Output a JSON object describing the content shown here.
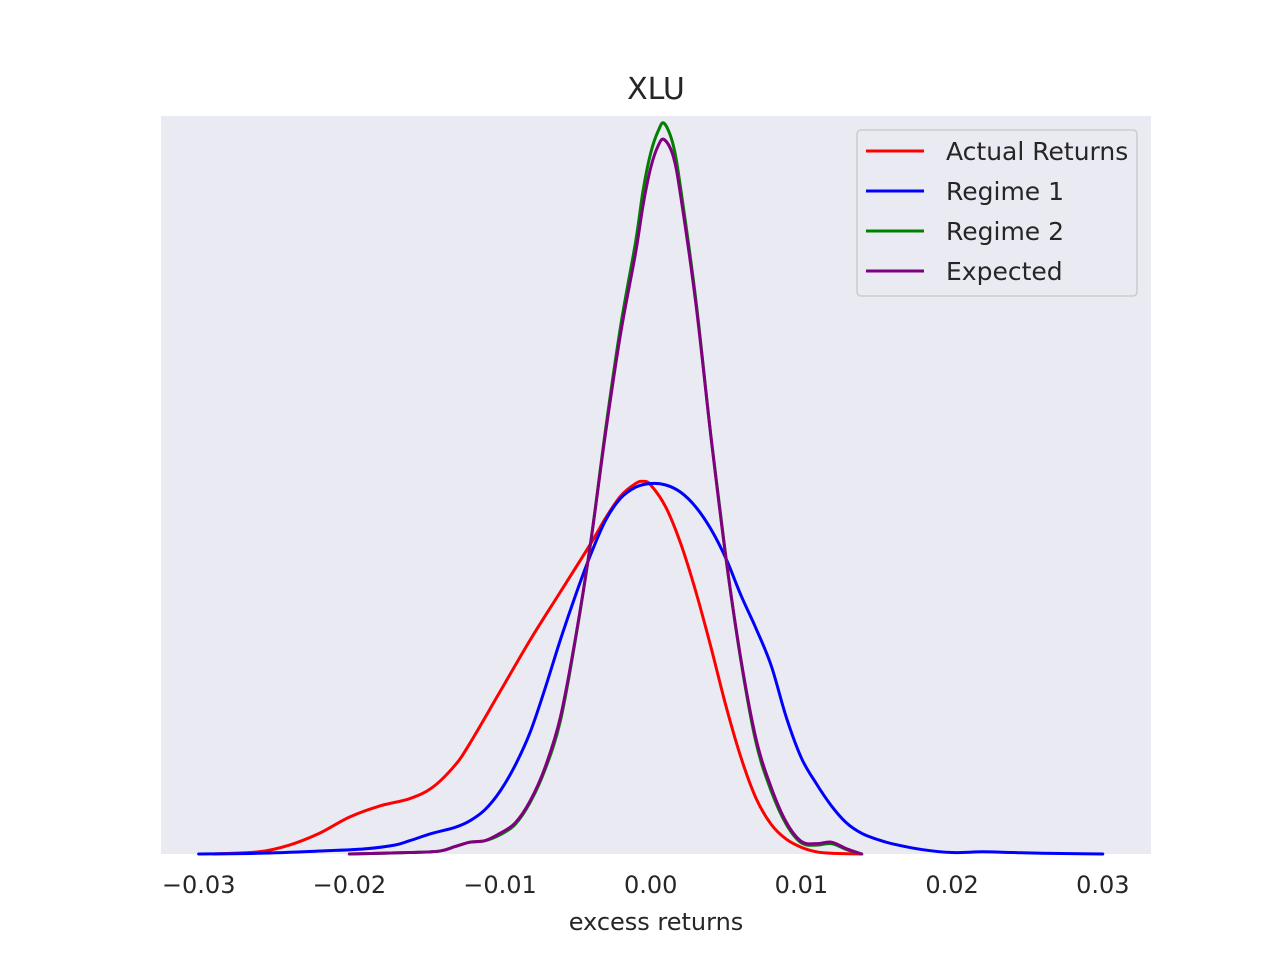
{
  "chart_data": {
    "type": "line",
    "title": "XLU",
    "xlabel": "excess returns",
    "ylabel": "",
    "xlim": [
      -0.0325,
      0.0332
    ],
    "ylim": [
      0,
      1.0
    ],
    "x_ticks": [
      -0.03,
      -0.02,
      -0.01,
      0.0,
      0.01,
      0.02,
      0.03
    ],
    "x_tick_labels": [
      "−0.03",
      "−0.02",
      "−0.01",
      "0.00",
      "0.01",
      "0.02",
      "0.03"
    ],
    "y_ticks_shown": false,
    "grid": false,
    "legend_position": "top-right",
    "series": [
      {
        "name": "Actual Returns",
        "color": "#ff0000",
        "points": [
          [
            -0.029,
            0.0
          ],
          [
            -0.026,
            0.003
          ],
          [
            -0.024,
            0.012
          ],
          [
            -0.022,
            0.028
          ],
          [
            -0.02,
            0.05
          ],
          [
            -0.018,
            0.065
          ],
          [
            -0.016,
            0.075
          ],
          [
            -0.0145,
            0.09
          ],
          [
            -0.013,
            0.12
          ],
          [
            -0.012,
            0.15
          ],
          [
            -0.01,
            0.22
          ],
          [
            -0.008,
            0.29
          ],
          [
            -0.006,
            0.355
          ],
          [
            -0.004,
            0.42
          ],
          [
            -0.003,
            0.455
          ],
          [
            -0.002,
            0.485
          ],
          [
            -0.001,
            0.502
          ],
          [
            -0.0005,
            0.505
          ],
          [
            0.0,
            0.5
          ],
          [
            0.001,
            0.47
          ],
          [
            0.002,
            0.42
          ],
          [
            0.003,
            0.355
          ],
          [
            0.004,
            0.28
          ],
          [
            0.005,
            0.2
          ],
          [
            0.006,
            0.13
          ],
          [
            0.007,
            0.075
          ],
          [
            0.008,
            0.04
          ],
          [
            0.009,
            0.02
          ],
          [
            0.01,
            0.009
          ],
          [
            0.011,
            0.003
          ],
          [
            0.012,
            0.001
          ],
          [
            0.014,
            0.0
          ]
        ]
      },
      {
        "name": "Regime 1",
        "color": "#0000ff",
        "points": [
          [
            -0.03,
            0.0
          ],
          [
            -0.026,
            0.001
          ],
          [
            -0.022,
            0.004
          ],
          [
            -0.019,
            0.007
          ],
          [
            -0.017,
            0.012
          ],
          [
            -0.016,
            0.018
          ],
          [
            -0.0145,
            0.028
          ],
          [
            -0.013,
            0.036
          ],
          [
            -0.012,
            0.045
          ],
          [
            -0.011,
            0.06
          ],
          [
            -0.01,
            0.085
          ],
          [
            -0.009,
            0.12
          ],
          [
            -0.008,
            0.165
          ],
          [
            -0.007,
            0.225
          ],
          [
            -0.006,
            0.29
          ],
          [
            -0.005,
            0.35
          ],
          [
            -0.004,
            0.405
          ],
          [
            -0.003,
            0.452
          ],
          [
            -0.002,
            0.482
          ],
          [
            -0.001,
            0.497
          ],
          [
            0.0,
            0.502
          ],
          [
            0.001,
            0.5
          ],
          [
            0.002,
            0.49
          ],
          [
            0.003,
            0.47
          ],
          [
            0.004,
            0.44
          ],
          [
            0.005,
            0.4
          ],
          [
            0.006,
            0.35
          ],
          [
            0.007,
            0.305
          ],
          [
            0.008,
            0.255
          ],
          [
            0.009,
            0.185
          ],
          [
            0.01,
            0.13
          ],
          [
            0.011,
            0.095
          ],
          [
            0.012,
            0.065
          ],
          [
            0.013,
            0.042
          ],
          [
            0.014,
            0.028
          ],
          [
            0.015,
            0.02
          ],
          [
            0.016,
            0.014
          ],
          [
            0.018,
            0.006
          ],
          [
            0.02,
            0.002
          ],
          [
            0.022,
            0.003
          ],
          [
            0.024,
            0.002
          ],
          [
            0.026,
            0.001
          ],
          [
            0.03,
            0.0
          ]
        ]
      },
      {
        "name": "Regime 2",
        "color": "#008000",
        "points": [
          [
            -0.02,
            0.0
          ],
          [
            -0.016,
            0.002
          ],
          [
            -0.014,
            0.004
          ],
          [
            -0.013,
            0.01
          ],
          [
            -0.012,
            0.016
          ],
          [
            -0.011,
            0.018
          ],
          [
            -0.01,
            0.026
          ],
          [
            -0.009,
            0.04
          ],
          [
            -0.008,
            0.07
          ],
          [
            -0.007,
            0.115
          ],
          [
            -0.006,
            0.18
          ],
          [
            -0.005,
            0.29
          ],
          [
            -0.004,
            0.42
          ],
          [
            -0.003,
            0.575
          ],
          [
            -0.002,
            0.715
          ],
          [
            -0.001,
            0.83
          ],
          [
            -0.0005,
            0.9
          ],
          [
            0.0,
            0.95
          ],
          [
            0.0005,
            0.98
          ],
          [
            0.0009,
            0.99
          ],
          [
            0.0015,
            0.96
          ],
          [
            0.002,
            0.9
          ],
          [
            0.003,
            0.75
          ],
          [
            0.004,
            0.565
          ],
          [
            0.005,
            0.4
          ],
          [
            0.006,
            0.26
          ],
          [
            0.007,
            0.15
          ],
          [
            0.008,
            0.085
          ],
          [
            0.009,
            0.04
          ],
          [
            0.01,
            0.015
          ],
          [
            0.011,
            0.012
          ],
          [
            0.012,
            0.014
          ],
          [
            0.013,
            0.006
          ],
          [
            0.014,
            0.0
          ]
        ]
      },
      {
        "name": "Expected",
        "color": "#800080",
        "points": [
          [
            -0.02,
            0.0
          ],
          [
            -0.016,
            0.002
          ],
          [
            -0.014,
            0.004
          ],
          [
            -0.013,
            0.01
          ],
          [
            -0.012,
            0.016
          ],
          [
            -0.011,
            0.018
          ],
          [
            -0.01,
            0.028
          ],
          [
            -0.009,
            0.042
          ],
          [
            -0.008,
            0.072
          ],
          [
            -0.007,
            0.118
          ],
          [
            -0.006,
            0.185
          ],
          [
            -0.005,
            0.292
          ],
          [
            -0.004,
            0.42
          ],
          [
            -0.003,
            0.57
          ],
          [
            -0.002,
            0.705
          ],
          [
            -0.001,
            0.815
          ],
          [
            -0.0005,
            0.88
          ],
          [
            0.0,
            0.93
          ],
          [
            0.0005,
            0.96
          ],
          [
            0.0009,
            0.968
          ],
          [
            0.0015,
            0.945
          ],
          [
            0.002,
            0.89
          ],
          [
            0.003,
            0.745
          ],
          [
            0.004,
            0.565
          ],
          [
            0.005,
            0.4
          ],
          [
            0.006,
            0.262
          ],
          [
            0.007,
            0.155
          ],
          [
            0.008,
            0.09
          ],
          [
            0.009,
            0.043
          ],
          [
            0.01,
            0.017
          ],
          [
            0.011,
            0.014
          ],
          [
            0.012,
            0.016
          ],
          [
            0.013,
            0.007
          ],
          [
            0.014,
            0.0
          ]
        ]
      }
    ]
  }
}
